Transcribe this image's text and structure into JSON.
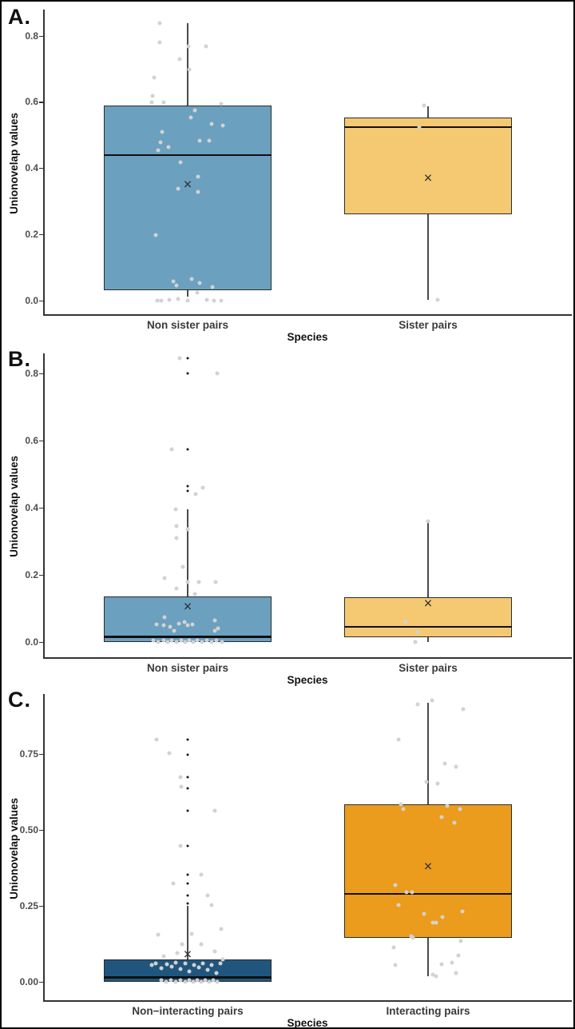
{
  "figure": {
    "background": "#ffffff",
    "border_color": "#000000",
    "mean_glyph": "×"
  },
  "colors": {
    "box_blue_light": "#6BA0BF",
    "box_yellow": "#F4C972",
    "box_blue_dark": "#20567D",
    "box_orange": "#EB9C1C",
    "point_gray": "#d2d2d2",
    "point_black": "#1c1c1c",
    "whisker": "#4a4a4a",
    "box_border": "#2b2b2b",
    "median": "#101010",
    "mean_marker": "#2f2f2f",
    "tick_text": "#4d4d4d",
    "category_text": "#3a3a3a",
    "title_text": "#111111"
  },
  "chart_data": [
    {
      "type": "box",
      "panel_label": "A.",
      "ylabel": "Unionovelap values",
      "xlabel": "Species",
      "grid": "off",
      "legend": "none",
      "ylim": [
        -0.04,
        0.88
      ],
      "yticks": {
        "labels": [
          "0.0",
          "0.2",
          "0.4",
          "0.6",
          "0.8"
        ],
        "values": [
          0,
          0.2,
          0.4,
          0.6,
          0.8
        ]
      },
      "series": [
        {
          "category": "Non sister pairs",
          "fill": "box_blue_light",
          "box": {
            "min": 0.012,
            "q1": 0.032,
            "median": 0.44,
            "q3": 0.59,
            "max": 0.838,
            "mean": 0.35
          },
          "outliers": [],
          "points": [
            [
              -35,
              0.84
            ],
            [
              -35,
              0.78
            ],
            [
              1,
              0.77
            ],
            [
              23,
              0.77
            ],
            [
              -10,
              0.73
            ],
            [
              2,
              0.7
            ],
            [
              -42,
              0.675
            ],
            [
              -44,
              0.62
            ],
            [
              -45,
              0.6
            ],
            [
              -30,
              0.6
            ],
            [
              42,
              0.595
            ],
            [
              9,
              0.575
            ],
            [
              4,
              0.555
            ],
            [
              30,
              0.535
            ],
            [
              44,
              0.53
            ],
            [
              -32,
              0.51
            ],
            [
              15,
              0.485
            ],
            [
              27,
              0.485
            ],
            [
              -34,
              0.48
            ],
            [
              -24,
              0.465
            ],
            [
              -37,
              0.455
            ],
            [
              -9,
              0.42
            ],
            [
              13,
              0.375
            ],
            [
              -12,
              0.34
            ],
            [
              13,
              0.33
            ],
            [
              -40,
              0.2
            ],
            [
              5,
              0.067
            ],
            [
              -18,
              0.06
            ],
            [
              -14,
              0.047
            ],
            [
              15,
              0.053
            ],
            [
              31,
              0.042
            ],
            [
              12,
              0.025
            ],
            [
              -38,
              0.0
            ],
            [
              -33,
              0.0
            ],
            [
              -23,
              0.003
            ],
            [
              -12,
              0.005
            ],
            [
              0,
              0.0
            ],
            [
              24,
              0.003
            ],
            [
              33,
              0.0
            ],
            [
              42,
              0.0
            ]
          ]
        },
        {
          "category": "Sister pairs",
          "fill": "box_yellow",
          "box": {
            "min": 0.003,
            "q1": 0.263,
            "median": 0.525,
            "q3": 0.555,
            "max": 0.588,
            "mean": 0.37
          },
          "outliers": [],
          "points": [
            [
              -5,
              0.59
            ],
            [
              -11,
              0.525
            ],
            [
              12,
              0.003
            ]
          ]
        }
      ]
    },
    {
      "type": "box",
      "panel_label": "B.",
      "ylabel": "Unionovelap values",
      "xlabel": "Species",
      "grid": "off",
      "legend": "none",
      "ylim": [
        -0.045,
        0.86
      ],
      "yticks": {
        "labels": [
          "0.0",
          "0.2",
          "0.4",
          "0.6",
          "0.8"
        ],
        "values": [
          0,
          0.2,
          0.4,
          0.6,
          0.8
        ]
      },
      "series": [
        {
          "category": "Non sister pairs",
          "fill": "box_blue_light",
          "box": {
            "min": 0.0,
            "q1": 0.0,
            "median": 0.016,
            "q3": 0.136,
            "max": 0.395,
            "mean": 0.105
          },
          "outliers": [
            [
              0,
              0.845
            ],
            [
              0,
              0.8
            ],
            [
              0,
              0.575
            ],
            [
              0,
              0.465
            ],
            [
              0,
              0.45
            ]
          ],
          "points": [
            [
              -10,
              0.845
            ],
            [
              37,
              0.8
            ],
            [
              -20,
              0.575
            ],
            [
              10,
              0.44
            ],
            [
              19,
              0.46
            ],
            [
              -15,
              0.395
            ],
            [
              -14,
              0.345
            ],
            [
              0,
              0.335
            ],
            [
              -14,
              0.31
            ],
            [
              -6,
              0.225
            ],
            [
              -29,
              0.19
            ],
            [
              0,
              0.18
            ],
            [
              14,
              0.18
            ],
            [
              35,
              0.18
            ],
            [
              -14,
              0.16
            ],
            [
              9,
              0.143
            ],
            [
              -29,
              0.075
            ],
            [
              34,
              0.065
            ],
            [
              -39,
              0.052
            ],
            [
              -30,
              0.05
            ],
            [
              -22,
              0.045
            ],
            [
              -17,
              0.033
            ],
            [
              -11,
              0.055
            ],
            [
              -4,
              0.06
            ],
            [
              0,
              0.05
            ],
            [
              6,
              0.053
            ],
            [
              34,
              0.033
            ],
            [
              38,
              0.04
            ],
            [
              -43,
              0.005
            ],
            [
              -37,
              0.0
            ],
            [
              -30,
              0.004
            ],
            [
              -25,
              0.0
            ],
            [
              -20,
              0.006
            ],
            [
              -14,
              0.0
            ],
            [
              -8,
              0.004
            ],
            [
              -3,
              0.0
            ],
            [
              2,
              0.006
            ],
            [
              7,
              0.0
            ],
            [
              12,
              0.004
            ],
            [
              18,
              0.0
            ],
            [
              24,
              0.006
            ],
            [
              30,
              0.0
            ],
            [
              36,
              0.004
            ],
            [
              43,
              0.0
            ]
          ]
        },
        {
          "category": "Sister pairs",
          "fill": "box_yellow",
          "box": {
            "min": 0.0,
            "q1": 0.014,
            "median": 0.045,
            "q3": 0.133,
            "max": 0.357,
            "mean": 0.115
          },
          "outliers": [],
          "points": [
            [
              0,
              0.36
            ],
            [
              -28,
              0.06
            ],
            [
              -13,
              0.03
            ],
            [
              -16,
              0.0
            ]
          ]
        }
      ]
    },
    {
      "type": "box",
      "panel_label": "C.",
      "ylabel": "Unionovelap values",
      "xlabel": "Species",
      "grid": "off",
      "legend": "none",
      "ylim": [
        -0.06,
        0.95
      ],
      "yticks": {
        "labels": [
          "0.00",
          "0.25",
          "0.50",
          "0.75"
        ],
        "values": [
          0,
          0.25,
          0.5,
          0.75
        ]
      },
      "series": [
        {
          "category": "Non−interacting pairs",
          "fill": "box_blue_dark",
          "box": {
            "min": 0.0,
            "q1": 0.0,
            "median": 0.015,
            "q3": 0.075,
            "max": 0.25,
            "mean": 0.09
          },
          "outliers": [
            [
              0,
              0.8
            ],
            [
              0,
              0.75
            ],
            [
              0,
              0.675
            ],
            [
              0,
              0.64
            ],
            [
              0,
              0.565
            ],
            [
              0,
              0.45
            ],
            [
              0,
              0.355
            ],
            [
              0,
              0.325
            ],
            [
              0,
              0.285
            ],
            [
              0,
              0.26
            ]
          ],
          "points": [
            [
              -39,
              0.8
            ],
            [
              -23,
              0.755
            ],
            [
              -9,
              0.675
            ],
            [
              -8,
              0.645
            ],
            [
              34,
              0.565
            ],
            [
              -9,
              0.45
            ],
            [
              17,
              0.355
            ],
            [
              -18,
              0.325
            ],
            [
              25,
              0.285
            ],
            [
              30,
              0.255
            ],
            [
              42,
              0.175
            ],
            [
              -37,
              0.155
            ],
            [
              5,
              0.16
            ],
            [
              -7,
              0.125
            ],
            [
              17,
              0.125
            ],
            [
              34,
              0.1
            ],
            [
              -30,
              0.085
            ],
            [
              -13,
              0.095
            ],
            [
              -45,
              0.055
            ],
            [
              -40,
              0.06
            ],
            [
              -33,
              0.045
            ],
            [
              -26,
              0.058
            ],
            [
              -20,
              0.05
            ],
            [
              -15,
              0.065
            ],
            [
              -9,
              0.042
            ],
            [
              -3,
              0.06
            ],
            [
              2,
              0.035
            ],
            [
              8,
              0.055
            ],
            [
              14,
              0.048
            ],
            [
              19,
              0.062
            ],
            [
              25,
              0.04
            ],
            [
              30,
              0.055
            ],
            [
              36,
              0.03
            ],
            [
              41,
              0.06
            ],
            [
              44,
              0.075
            ],
            [
              -33,
              0.005
            ],
            [
              -27,
              0.0
            ],
            [
              -21,
              0.007
            ],
            [
              -15,
              0.0
            ],
            [
              -9,
              0.005
            ],
            [
              -3,
              0.0
            ],
            [
              2,
              0.007
            ],
            [
              7,
              0.0
            ],
            [
              12,
              0.005
            ],
            [
              17,
              0.0
            ],
            [
              22,
              0.007
            ],
            [
              27,
              0.0
            ],
            [
              32,
              0.005
            ],
            [
              37,
              0.0
            ]
          ]
        },
        {
          "category": "Interacting pairs",
          "fill": "box_orange",
          "box": {
            "min": 0.02,
            "q1": 0.145,
            "median": 0.29,
            "q3": 0.585,
            "max": 0.92,
            "mean": 0.38
          },
          "outliers": [],
          "points": [
            [
              5,
              0.93
            ],
            [
              -13,
              0.915
            ],
            [
              44,
              0.9
            ],
            [
              -37,
              0.8
            ],
            [
              21,
              0.72
            ],
            [
              35,
              0.71
            ],
            [
              -2,
              0.66
            ],
            [
              12,
              0.655
            ],
            [
              -34,
              0.585
            ],
            [
              -31,
              0.57
            ],
            [
              24,
              0.58
            ],
            [
              40,
              0.57
            ],
            [
              17,
              0.545
            ],
            [
              33,
              0.525
            ],
            [
              -41,
              0.32
            ],
            [
              -27,
              0.295
            ],
            [
              -20,
              0.295
            ],
            [
              -37,
              0.255
            ],
            [
              -5,
              0.224
            ],
            [
              6,
              0.195
            ],
            [
              10,
              0.197
            ],
            [
              18,
              0.213
            ],
            [
              43,
              0.232
            ],
            [
              -21,
              0.15
            ],
            [
              -19,
              0.145
            ],
            [
              41,
              0.134
            ],
            [
              -43,
              0.113
            ],
            [
              -41,
              0.055
            ],
            [
              17,
              0.058
            ],
            [
              30,
              0.063
            ],
            [
              38,
              0.087
            ],
            [
              35,
              0.03
            ],
            [
              6,
              0.024
            ],
            [
              10,
              0.02
            ]
          ]
        }
      ]
    }
  ]
}
